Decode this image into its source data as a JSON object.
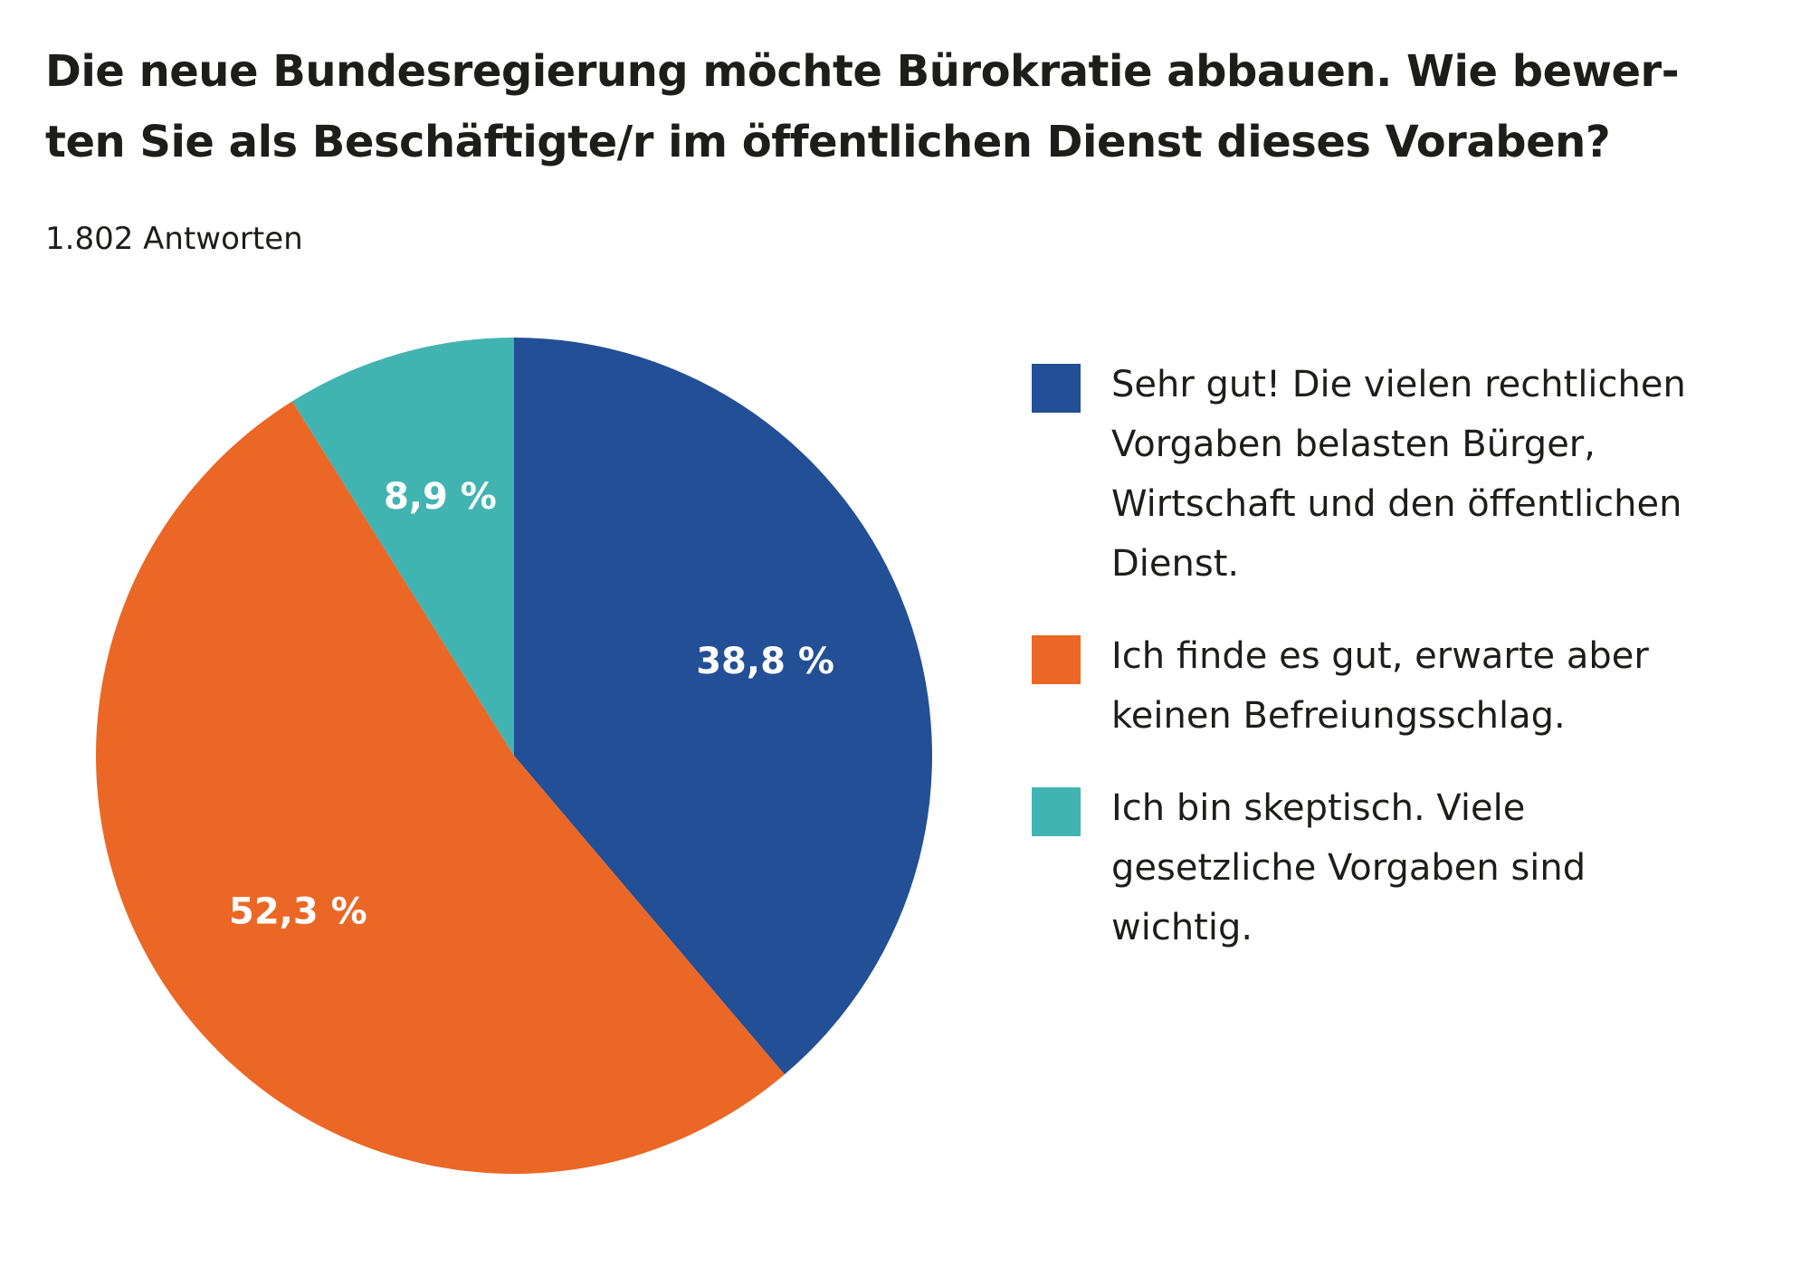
{
  "chart_data": {
    "type": "pie",
    "title_lines": [
      "Die neue Bundesregierung möchte Bürokratie abbauen. Wie bewer-",
      "ten Sie als Beschäftigte/r im öffentlichen Dienst dieses Voraben?"
    ],
    "subtitle": "1.802 Antworten",
    "slices": [
      {
        "label_lines": [
          "Sehr gut! Die vielen rechtlichen",
          "Vorgaben belasten Bürger,",
          "Wirtschaft und den öffentlichen",
          "Dienst."
        ],
        "value": 38.8,
        "display": "38,8 %",
        "color": "#234f96"
      },
      {
        "label_lines": [
          "Ich finde es gut, erwarte aber",
          "keinen Befreiungsschlag."
        ],
        "value": 52.3,
        "display": "52,3 %",
        "color": "#eb6726"
      },
      {
        "label_lines": [
          "Ich bin skeptisch. Viele",
          "gesetzliche Vorgaben sind",
          "wichtig."
        ],
        "value": 8.9,
        "display": "8,9 %",
        "color": "#41b4b2"
      }
    ],
    "start_angle": "12 o'clock",
    "direction": "clockwise",
    "legend_position": "right",
    "label_color": "#ffffff"
  }
}
